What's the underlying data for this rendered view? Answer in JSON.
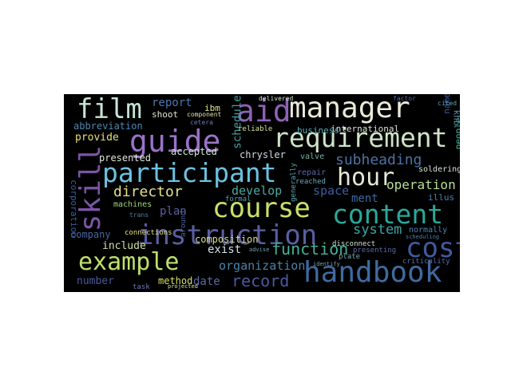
{
  "words": [
    {
      "text": "instruction",
      "color": "#5a5fa3"
    },
    {
      "text": "handbook",
      "color": "#3f6aa0"
    },
    {
      "text": "participant",
      "color": "#6cc2e0"
    },
    {
      "text": "requirement",
      "color": "#cfe3c8"
    },
    {
      "text": "content",
      "color": "#2aa89a"
    },
    {
      "text": "manager",
      "color": "#e8e9d8"
    },
    {
      "text": "course",
      "color": "#c8e06a"
    },
    {
      "text": "example",
      "color": "#bde06a"
    },
    {
      "text": "guide",
      "color": "#9a73c8"
    },
    {
      "text": "film",
      "color": "#c7e4d6"
    },
    {
      "text": "aid",
      "color": "#8e62b8"
    },
    {
      "text": "cost",
      "color": "#3f5a9e"
    },
    {
      "text": "hour",
      "color": "#e5e8d3"
    },
    {
      "text": "skill",
      "color": "#7b55a8"
    },
    {
      "text": "record",
      "color": "#4b5aa0"
    },
    {
      "text": "director",
      "color": "#e3e08a"
    },
    {
      "text": "subheading",
      "color": "#4b73a8"
    },
    {
      "text": "function",
      "color": "#46b29a"
    },
    {
      "text": "system",
      "color": "#3aa6a3"
    },
    {
      "text": "operation",
      "color": "#b9df98"
    },
    {
      "text": "organization",
      "color": "#4b82a8"
    },
    {
      "text": "develop",
      "color": "#4da8a0"
    },
    {
      "text": "abbreviation",
      "color": "#4a87b0"
    },
    {
      "text": "report",
      "color": "#4b77b0"
    },
    {
      "text": "provide",
      "color": "#e5e07a"
    },
    {
      "text": "include",
      "color": "#cde0a2"
    },
    {
      "text": "number",
      "color": "#4b5aa0"
    },
    {
      "text": "date",
      "color": "#5b68a8"
    },
    {
      "text": "schedule",
      "color": "#3fa3a0"
    },
    {
      "text": "space",
      "color": "#3c5c9f"
    },
    {
      "text": "plan",
      "color": "#5a5fa3"
    },
    {
      "text": "exist",
      "color": "#cfe4e8"
    },
    {
      "text": "ment",
      "color": "#3a6aa0"
    },
    {
      "text": "company",
      "color": "#4a63a0"
    },
    {
      "text": "method",
      "color": "#d6df62"
    },
    {
      "text": "composition",
      "color": "#d9df8c"
    },
    {
      "text": "accepted",
      "color": "#cfe3d6"
    },
    {
      "text": "presented",
      "color": "#e2e7da"
    },
    {
      "text": "chrysler",
      "color": "#cfd9e2"
    },
    {
      "text": "corporation",
      "color": "#3a5f9e"
    },
    {
      "text": "international",
      "color": "#d7e3d8"
    },
    {
      "text": "shoot",
      "color": "#e7e8d6"
    },
    {
      "text": "ibm",
      "color": "#e3e088"
    },
    {
      "text": "business",
      "color": "#5aa7b4"
    },
    {
      "text": "machines",
      "color": "#9fd57a"
    },
    {
      "text": "illus",
      "color": "#4b82b0"
    },
    {
      "text": "people",
      "color": "#46b29a"
    },
    {
      "text": "name",
      "color": "#3c5c9f"
    },
    {
      "text": "khb",
      "color": "#5a8fb0"
    },
    {
      "text": "normally",
      "color": "#4a87b0"
    },
    {
      "text": "valve",
      "color": "#6fb39e"
    },
    {
      "text": "repair",
      "color": "#5a6aa8"
    },
    {
      "text": "soldering",
      "color": "#d9e2d8"
    },
    {
      "text": "reached",
      "color": "#6fa8b4"
    },
    {
      "text": "reliable",
      "color": "#d7e39c"
    },
    {
      "text": "connections",
      "color": "#e7e07a"
    },
    {
      "text": "disconnect",
      "color": "#cfe3d6"
    },
    {
      "text": "generally",
      "color": "#5aa7b4"
    },
    {
      "text": "formal",
      "color": "#5a9fb0"
    },
    {
      "text": "around",
      "color": "#4a63a0"
    },
    {
      "text": "task",
      "color": "#6b7ab0"
    },
    {
      "text": "presenting",
      "color": "#5a6aa8"
    },
    {
      "text": "criticality",
      "color": "#5a6aa8"
    },
    {
      "text": "plate",
      "color": "#6fa8b4"
    },
    {
      "text": "component",
      "color": "#e3e0a8"
    },
    {
      "text": "cetera",
      "color": "#6b7ab0"
    },
    {
      "text": "delivered",
      "color": "#d9e2d8"
    },
    {
      "text": "cited",
      "color": "#5aa7b4"
    },
    {
      "text": "scheduling",
      "color": "#4b82a8"
    },
    {
      "text": "advise",
      "color": "#6fa8b4"
    },
    {
      "text": "trans",
      "color": "#4b82a8"
    },
    {
      "text": "factor",
      "color": "#5a6aa8"
    },
    {
      "text": "projected",
      "color": "#d7e39c"
    },
    {
      "text": "identify",
      "color": "#6fa8b4"
    }
  ]
}
